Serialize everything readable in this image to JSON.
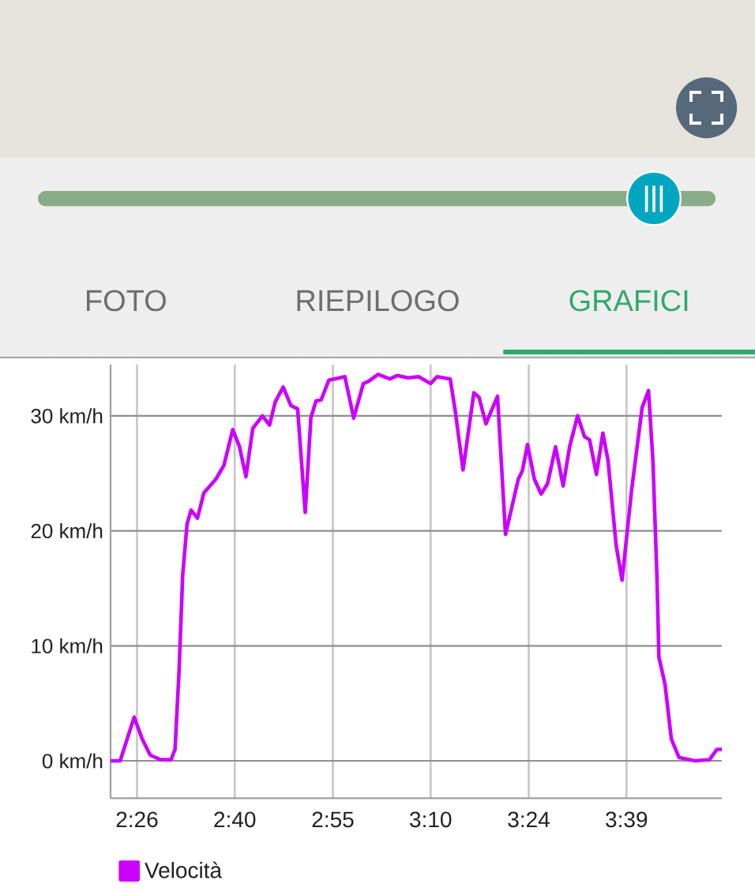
{
  "chart_data": {
    "type": "line",
    "x": [
      2.364,
      2.388,
      2.423,
      2.443,
      2.463,
      2.489,
      2.515,
      2.525,
      2.535,
      2.544,
      2.555,
      2.565,
      2.581,
      2.597,
      2.627,
      2.647,
      2.669,
      2.686,
      2.702,
      2.719,
      2.743,
      2.761,
      2.775,
      2.795,
      2.814,
      2.831,
      2.85,
      2.864,
      2.877,
      2.89,
      2.909,
      2.949,
      2.971,
      2.995,
      3.008,
      3.032,
      3.061,
      3.08,
      3.107,
      3.133,
      3.163,
      3.179,
      3.212,
      3.225,
      3.244,
      3.271,
      3.284,
      3.301,
      3.33,
      3.35,
      3.382,
      3.392,
      3.405,
      3.422,
      3.439,
      3.455,
      3.475,
      3.494,
      3.51,
      3.53,
      3.547,
      3.56,
      3.577,
      3.593,
      3.606,
      3.626,
      3.641,
      3.665,
      3.691,
      3.707,
      3.718,
      3.728,
      3.733,
      3.748,
      3.764,
      3.783,
      3.823,
      3.859,
      3.878,
      3.889
    ],
    "series": [
      {
        "name": "Velocità",
        "color": "#cc00ff",
        "values": [
          0,
          0,
          3.8,
          1.9,
          0.5,
          0.1,
          0.1,
          1.0,
          7.8,
          16.1,
          20.6,
          21.8,
          21.1,
          23.3,
          24.5,
          25.7,
          28.8,
          27.3,
          24.7,
          28.9,
          30.0,
          29.2,
          31.2,
          32.5,
          30.9,
          30.6,
          21.6,
          29.8,
          31.3,
          31.4,
          33.1,
          33.4,
          29.8,
          32.8,
          33.0,
          33.6,
          33.2,
          33.5,
          33.3,
          33.4,
          32.8,
          33.4,
          33.2,
          30.3,
          25.3,
          32.0,
          31.6,
          29.3,
          31.7,
          19.7,
          24.5,
          25.2,
          27.5,
          24.5,
          23.2,
          24.1,
          27.3,
          23.9,
          27.3,
          30.0,
          28.2,
          27.9,
          24.9,
          28.5,
          26.1,
          18.8,
          15.7,
          23.6,
          30.7,
          32.2,
          26.1,
          16.1,
          9.0,
          6.7,
          1.9,
          0.3,
          0,
          0.1,
          1.0,
          1.0
        ]
      }
    ],
    "xlim": [
      2.364,
      3.89
    ],
    "ylim": [
      -3.25,
      34.45
    ],
    "xticks": [
      {
        "value": 2.43,
        "label": "2:26"
      },
      {
        "value": 2.674,
        "label": "2:40"
      },
      {
        "value": 2.919,
        "label": "2:55"
      },
      {
        "value": 3.163,
        "label": "3:10"
      },
      {
        "value": 3.408,
        "label": "3:24"
      },
      {
        "value": 3.652,
        "label": "3:39"
      }
    ],
    "yticks": [
      {
        "value": 0,
        "label": "0 km/h"
      },
      {
        "value": 10,
        "label": "10 km/h"
      },
      {
        "value": 20,
        "label": "20 km/h"
      },
      {
        "value": 30,
        "label": "30 km/h"
      }
    ],
    "grid": true,
    "legend": "bottom left",
    "marker": "none",
    "line_style": "solid",
    "annotations": [
      "FOTO",
      "RIEPILOGO",
      "GRAFICI"
    ]
  }
}
